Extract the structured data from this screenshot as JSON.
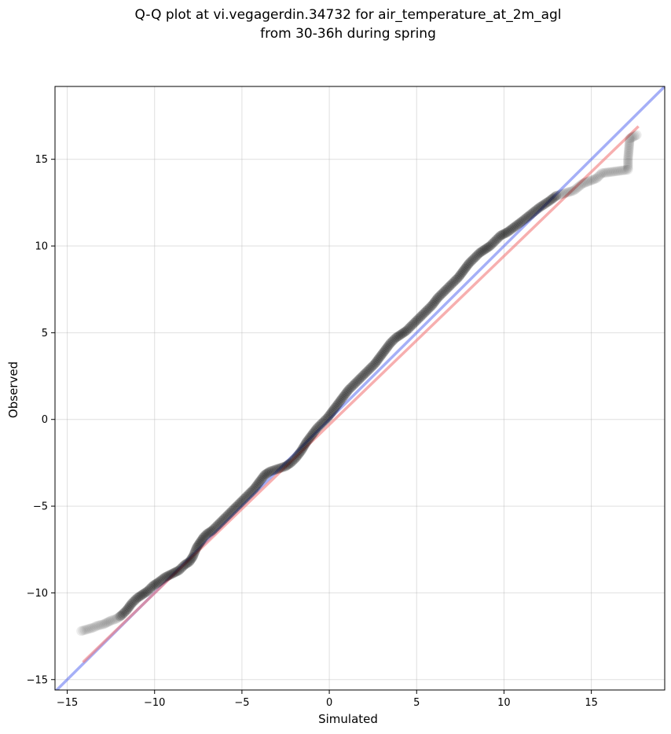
{
  "chart_data": {
    "type": "scatter",
    "title_line1": "Q-Q plot at vi.vegagerdin.34732 for air_temperature_at_2m_agl",
    "title_line2": "from 30-36h during spring",
    "xlabel": "Simulated",
    "ylabel": "Observed",
    "xlim": [
      -15.7,
      19.2
    ],
    "ylim": [
      -15.6,
      19.2
    ],
    "xticks": [
      -15,
      -10,
      -5,
      0,
      5,
      10,
      15
    ],
    "yticks": [
      -15,
      -10,
      -5,
      0,
      5,
      10,
      15
    ],
    "xtick_labels": [
      "−15",
      "−10",
      "−5",
      "0",
      "5",
      "10",
      "15"
    ],
    "ytick_labels": [
      "−15",
      "−10",
      "−5",
      "0",
      "5",
      "10",
      "15"
    ],
    "grid": true,
    "point_color": "#000000",
    "identity_line": {
      "color": "#5b6ef0",
      "x": [
        -15.7,
        19.2
      ],
      "y": [
        -15.7,
        19.2
      ]
    },
    "fit_line": {
      "color": "#f27a7a",
      "x": [
        -14.1,
        17.7
      ],
      "y": [
        -14.0,
        16.9
      ]
    },
    "quantiles": {
      "x": [
        -14.2,
        -13.5,
        -13.3,
        -12.9,
        -12.5,
        -12.2,
        -11.9,
        -11.6,
        -11.3,
        -11.0,
        -10.7,
        -10.4,
        -10.1,
        -9.8,
        -9.4,
        -9.0,
        -8.6,
        -8.3,
        -8.0,
        -7.8,
        -7.6,
        -7.4,
        -7.2,
        -7.0,
        -6.7,
        -6.4,
        -6.1,
        -5.8,
        -5.5,
        -5.2,
        -4.9,
        -4.6,
        -4.3,
        -4.0,
        -3.7,
        -3.4,
        -3.1,
        -2.8,
        -2.5,
        -2.2,
        -1.9,
        -1.6,
        -1.3,
        -1.0,
        -0.7,
        -0.4,
        -0.1,
        0.2,
        0.5,
        0.8,
        1.1,
        1.4,
        1.7,
        2.0,
        2.3,
        2.6,
        2.9,
        3.2,
        3.5,
        3.8,
        4.1,
        4.4,
        4.7,
        5.0,
        5.3,
        5.6,
        5.9,
        6.2,
        6.5,
        6.8,
        7.1,
        7.4,
        7.7,
        8.0,
        8.3,
        8.6,
        8.9,
        9.2,
        9.5,
        9.8,
        10.2,
        10.6,
        11.0,
        11.5,
        12.0,
        12.6,
        13.0,
        14.0,
        14.5,
        15.3,
        15.6,
        17.1,
        17.1,
        17.2,
        17.6
      ],
      "y": [
        -12.2,
        -12.0,
        -11.9,
        -11.8,
        -11.6,
        -11.5,
        -11.3,
        -11.0,
        -10.6,
        -10.3,
        -10.1,
        -9.9,
        -9.6,
        -9.4,
        -9.1,
        -8.9,
        -8.7,
        -8.4,
        -8.2,
        -7.9,
        -7.4,
        -7.1,
        -6.8,
        -6.6,
        -6.4,
        -6.1,
        -5.8,
        -5.5,
        -5.2,
        -4.9,
        -4.6,
        -4.3,
        -4.0,
        -3.6,
        -3.2,
        -3.0,
        -2.9,
        -2.8,
        -2.7,
        -2.5,
        -2.2,
        -1.8,
        -1.3,
        -0.9,
        -0.5,
        -0.2,
        0.1,
        0.5,
        0.9,
        1.3,
        1.7,
        2.0,
        2.3,
        2.6,
        2.9,
        3.2,
        3.6,
        4.0,
        4.4,
        4.7,
        4.9,
        5.1,
        5.4,
        5.7,
        6.0,
        6.3,
        6.6,
        7.0,
        7.3,
        7.6,
        7.9,
        8.2,
        8.6,
        9.0,
        9.3,
        9.6,
        9.8,
        10.0,
        10.3,
        10.6,
        10.8,
        11.1,
        11.4,
        11.8,
        12.2,
        12.6,
        12.9,
        13.2,
        13.6,
        13.9,
        14.2,
        14.4,
        15.0,
        16.2,
        16.4
      ]
    }
  }
}
